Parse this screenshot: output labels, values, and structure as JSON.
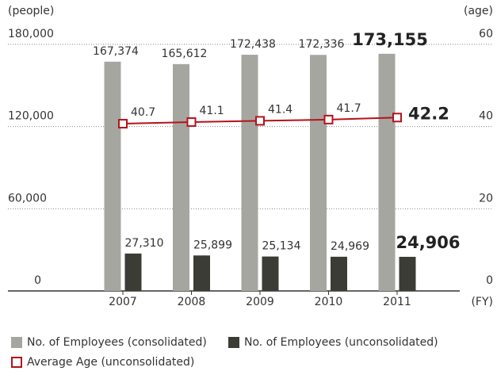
{
  "chart_data": {
    "type": "bar",
    "y_label": "(people)",
    "y2_label": "(age)",
    "x_label": "(FY)",
    "categories": [
      "2007",
      "2008",
      "2009",
      "2010",
      "2011"
    ],
    "series": [
      {
        "name": "No. of Employees (consolidated)",
        "color": "#a6a6a1",
        "values": [
          167374,
          165612,
          172438,
          172336,
          173155
        ],
        "value_labels": [
          "167,374",
          "165,612",
          "172,438",
          "172,336",
          "173,155"
        ]
      },
      {
        "name": "No. of Employees (unconsolidated)",
        "color": "#3c3c37",
        "values": [
          27310,
          25899,
          25134,
          24969,
          24906
        ],
        "value_labels": [
          "27,310",
          "25,899",
          "25,134",
          "24,969",
          "24,906"
        ]
      },
      {
        "name": "Average Age (unconsolidated)",
        "color": "#b5121b",
        "type": "line",
        "axis": "y2",
        "values": [
          40.7,
          41.1,
          41.4,
          41.7,
          42.2
        ]
      }
    ],
    "ylim": [
      0,
      180000
    ],
    "yticks": [
      0,
      {
        "value": 60000,
        "label": "60,000"
      },
      {
        "value": 120000,
        "label": "120,000"
      },
      {
        "value": 180000,
        "label": "180,000"
      }
    ],
    "y2lim": [
      0,
      60
    ],
    "y2ticks": [
      0,
      20,
      40,
      60
    ],
    "grid": true
  }
}
